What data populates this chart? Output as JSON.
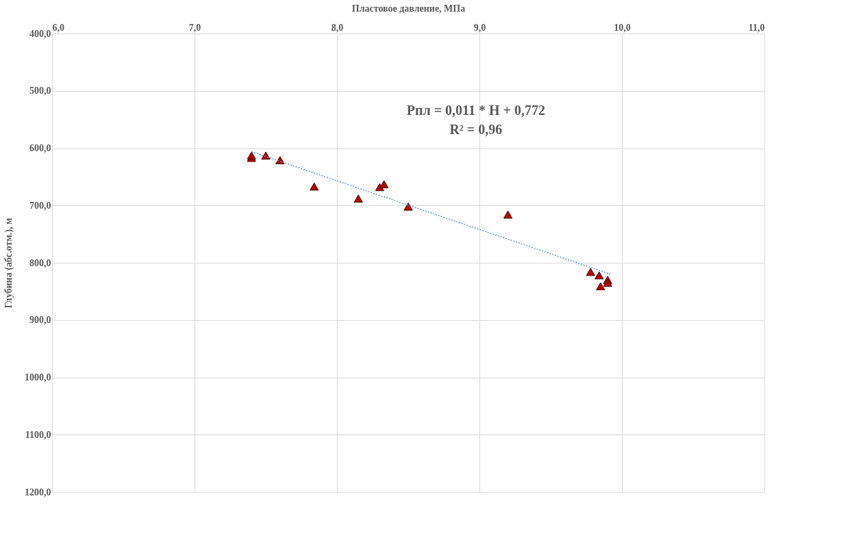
{
  "chart_data": {
    "type": "scatter",
    "xlabel": "Пластовое давление, МПа",
    "ylabel": "Глубина (абс.отм.), м",
    "annotations": [
      "Pпл = 0,011 * H + 0,772",
      "R² = 0,96"
    ],
    "series": [
      {
        "color": "#c00000",
        "marker": "triangle",
        "x": [
          7.4,
          7.4,
          7.5,
          7.6,
          7.84,
          8.15,
          8.3,
          8.33,
          8.5,
          9.2,
          9.78,
          9.84,
          9.9,
          9.9,
          9.85
        ],
        "values": [
          617,
          613,
          613,
          621,
          667,
          688,
          668,
          663,
          702,
          716,
          816,
          822,
          830,
          835,
          841
        ]
      },
      {
        "type": "line",
        "color": "#5b9bd5",
        "line_style": "dotted",
        "x": [
          7.4,
          9.92
        ],
        "values": [
          606,
          820
        ]
      }
    ],
    "xlim": [
      6,
      11
    ],
    "xticks": [
      {
        "value": 6,
        "label": "6,0"
      },
      {
        "value": 7,
        "label": "7,0"
      },
      {
        "value": 8,
        "label": "8,0"
      },
      {
        "value": 9,
        "label": "9,0"
      },
      {
        "value": 10,
        "label": "10,0"
      },
      {
        "value": 11,
        "label": "11,0"
      }
    ],
    "ylim": [
      1200,
      400
    ],
    "yticks": [
      {
        "value": 400,
        "label": "400,0"
      },
      {
        "value": 500,
        "label": "500,0"
      },
      {
        "value": 600,
        "label": "600,0"
      },
      {
        "value": 700,
        "label": "700,0"
      },
      {
        "value": 800,
        "label": "800,0"
      },
      {
        "value": 900,
        "label": "900,0"
      },
      {
        "value": 1000,
        "label": "1000,0"
      },
      {
        "value": 1100,
        "label": "1100,0"
      },
      {
        "value": 1200,
        "label": "1200,0"
      }
    ],
    "grid": true
  }
}
